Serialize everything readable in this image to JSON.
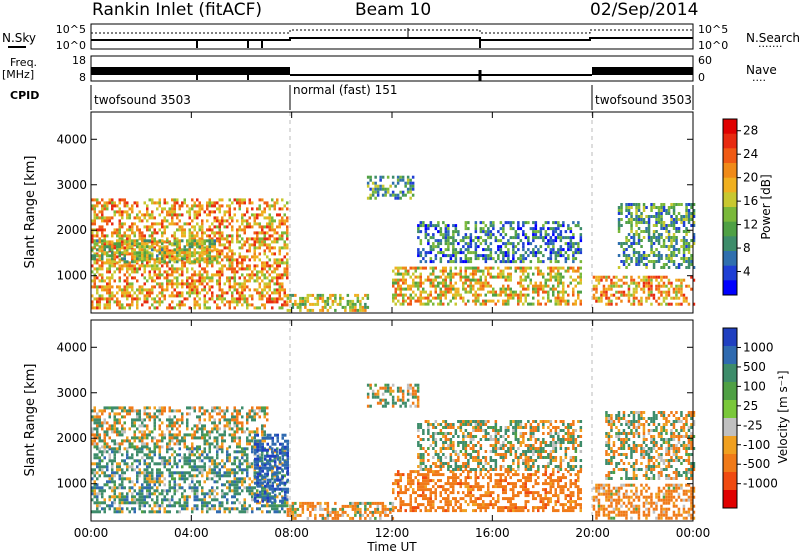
{
  "header": {
    "title": "Rankin Inlet (fitACF)",
    "beam": "Beam 10",
    "date": "02/Sep/2014"
  },
  "status_panels": {
    "nsky_label": "N.Sky",
    "nsearch_label": "N.Search",
    "nsky_ticks": [
      "10^5",
      "10^0"
    ],
    "nsearch_ticks": [
      "10^5",
      "10^0"
    ],
    "freq_label": "Freq.",
    "freq_unit": "[MHz]",
    "freq_ticks": [
      "18",
      "8"
    ],
    "nave_label": "Nave",
    "nave_ticks": [
      "60",
      "0"
    ],
    "cpid_label": "CPID",
    "cpid_segments": [
      {
        "label": "twofsound 3503",
        "start_hour": 0,
        "end_hour": 8
      },
      {
        "label": "normal (fast) 151",
        "start_hour": 8,
        "end_hour": 20
      },
      {
        "label": "twofsound 3503",
        "start_hour": 20,
        "end_hour": 24
      }
    ]
  },
  "chart_data": [
    {
      "type": "heatmap",
      "name": "power",
      "ylabel": "Slant Range [km]",
      "xlabel": "",
      "xlim_hours": [
        0,
        24
      ],
      "ylim_km": [
        180,
        4600
      ],
      "y_ticks": [
        "4000",
        "3000",
        "2000",
        "1000"
      ],
      "x_ticks": [
        "00:00",
        "04:00",
        "08:00",
        "12:00",
        "16:00",
        "20:00",
        "00:00"
      ],
      "colorbar": {
        "label": "Power [dB]",
        "ticks": [
          "28",
          "24",
          "20",
          "16",
          "12",
          "8",
          "4"
        ],
        "range": [
          0,
          30
        ],
        "colors": [
          "#0000ff",
          "#1f3fd4",
          "#2f6fae",
          "#3d8c6a",
          "#4fa044",
          "#7ab83a",
          "#c8c830",
          "#f0b020",
          "#f08a18",
          "#f05a14",
          "#e82a10",
          "#e00000"
        ]
      },
      "echo_regions": [
        {
          "t_start": 0.0,
          "t_end": 7.8,
          "r_start": 280,
          "r_end": 2700,
          "mean_dB": 20
        },
        {
          "t_start": 0.0,
          "t_end": 5.0,
          "r_start": 1300,
          "r_end": 1800,
          "mean_dB": 14
        },
        {
          "t_start": 7.8,
          "t_end": 11.0,
          "r_start": 250,
          "r_end": 600,
          "mean_dB": 16
        },
        {
          "t_start": 11.0,
          "t_end": 12.8,
          "r_start": 2700,
          "r_end": 3200,
          "mean_dB": 10
        },
        {
          "t_start": 12.0,
          "t_end": 19.5,
          "r_start": 400,
          "r_end": 1200,
          "mean_dB": 18
        },
        {
          "t_start": 13.0,
          "t_end": 19.5,
          "r_start": 1300,
          "r_end": 2200,
          "mean_dB": 8
        },
        {
          "t_start": 20.0,
          "t_end": 24.0,
          "r_start": 350,
          "r_end": 1000,
          "mean_dB": 20
        },
        {
          "t_start": 21.0,
          "t_end": 24.0,
          "r_start": 1200,
          "r_end": 2600,
          "mean_dB": 10
        }
      ]
    },
    {
      "type": "heatmap",
      "name": "velocity",
      "ylabel": "Slant Range [km]",
      "xlabel": "Time UT",
      "xlim_hours": [
        0,
        24
      ],
      "ylim_km": [
        180,
        4600
      ],
      "y_ticks": [
        "4000",
        "3000",
        "2000",
        "1000"
      ],
      "x_ticks": [
        "00:00",
        "04:00",
        "08:00",
        "12:00",
        "16:00",
        "20:00",
        "00:00"
      ],
      "colorbar": {
        "label": "Velocity [m s⁻¹]",
        "ticks": [
          "1000",
          "500",
          "100",
          "25",
          "-25",
          "-100",
          "-500",
          "-1000"
        ],
        "colors": [
          "#2040c0",
          "#2f6ab0",
          "#3d8c6a",
          "#4fa044",
          "#7ac83a",
          "#c0c0c0",
          "#f0a020",
          "#f07a18",
          "#f04a10",
          "#e00000"
        ]
      },
      "echo_regions": [
        {
          "t_start": 0.0,
          "t_end": 7.8,
          "r_start": 400,
          "r_end": 1800,
          "mean_ms": 150
        },
        {
          "t_start": 0.0,
          "t_end": 7.0,
          "r_start": 1800,
          "r_end": 2700,
          "mean_ms": 0
        },
        {
          "t_start": 6.5,
          "t_end": 7.8,
          "r_start": 600,
          "r_end": 2100,
          "mean_ms": 700
        },
        {
          "t_start": 7.8,
          "t_end": 12.0,
          "r_start": 250,
          "r_end": 600,
          "mean_ms": -120
        },
        {
          "t_start": 11.0,
          "t_end": 13.0,
          "r_start": 2700,
          "r_end": 3200,
          "mean_ms": 0
        },
        {
          "t_start": 12.0,
          "t_end": 19.5,
          "r_start": 400,
          "r_end": 1300,
          "mean_ms": -300
        },
        {
          "t_start": 13.0,
          "t_end": 19.5,
          "r_start": 1300,
          "r_end": 2400,
          "mean_ms": 0
        },
        {
          "t_start": 20.0,
          "t_end": 24.0,
          "r_start": 250,
          "r_end": 1000,
          "mean_ms": -200
        },
        {
          "t_start": 20.5,
          "t_end": 24.0,
          "r_start": 1100,
          "r_end": 2600,
          "mean_ms": 0
        }
      ]
    }
  ]
}
